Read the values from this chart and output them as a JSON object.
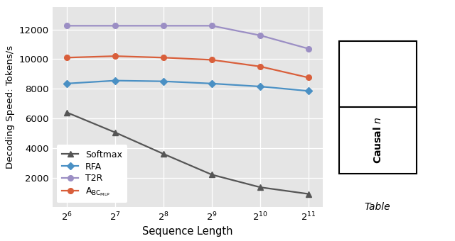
{
  "x_labels": [
    "$2^6$",
    "$2^7$",
    "$2^8$",
    "$2^9$",
    "$2^{10}$",
    "$2^{11}$"
  ],
  "x_values": [
    64,
    128,
    256,
    512,
    1024,
    2048
  ],
  "softmax": [
    6400,
    5050,
    3600,
    2200,
    1350,
    900
  ],
  "rfa": [
    8350,
    8550,
    8500,
    8350,
    8150,
    7850
  ],
  "t2r": [
    12250,
    12250,
    12250,
    12250,
    11600,
    10700
  ],
  "abc_mlp": [
    10100,
    10200,
    10100,
    9950,
    9500,
    8750
  ],
  "softmax_color": "#555555",
  "rfa_color": "#4a90c4",
  "t2r_color": "#9b8ec4",
  "abc_mlp_color": "#d95f3b",
  "bg_color": "#e5e5e5",
  "ylabel": "Decoding Speed: Tokens/s",
  "xlabel": "Sequence Length",
  "ylim": [
    0,
    13500
  ],
  "yticks": [
    2000,
    4000,
    6000,
    8000,
    10000,
    12000
  ],
  "legend_labels": [
    "Softmax",
    "RFA",
    "T2R"
  ],
  "abc_label": "A$\\mathrm{_{BC_{MLP}}}$"
}
